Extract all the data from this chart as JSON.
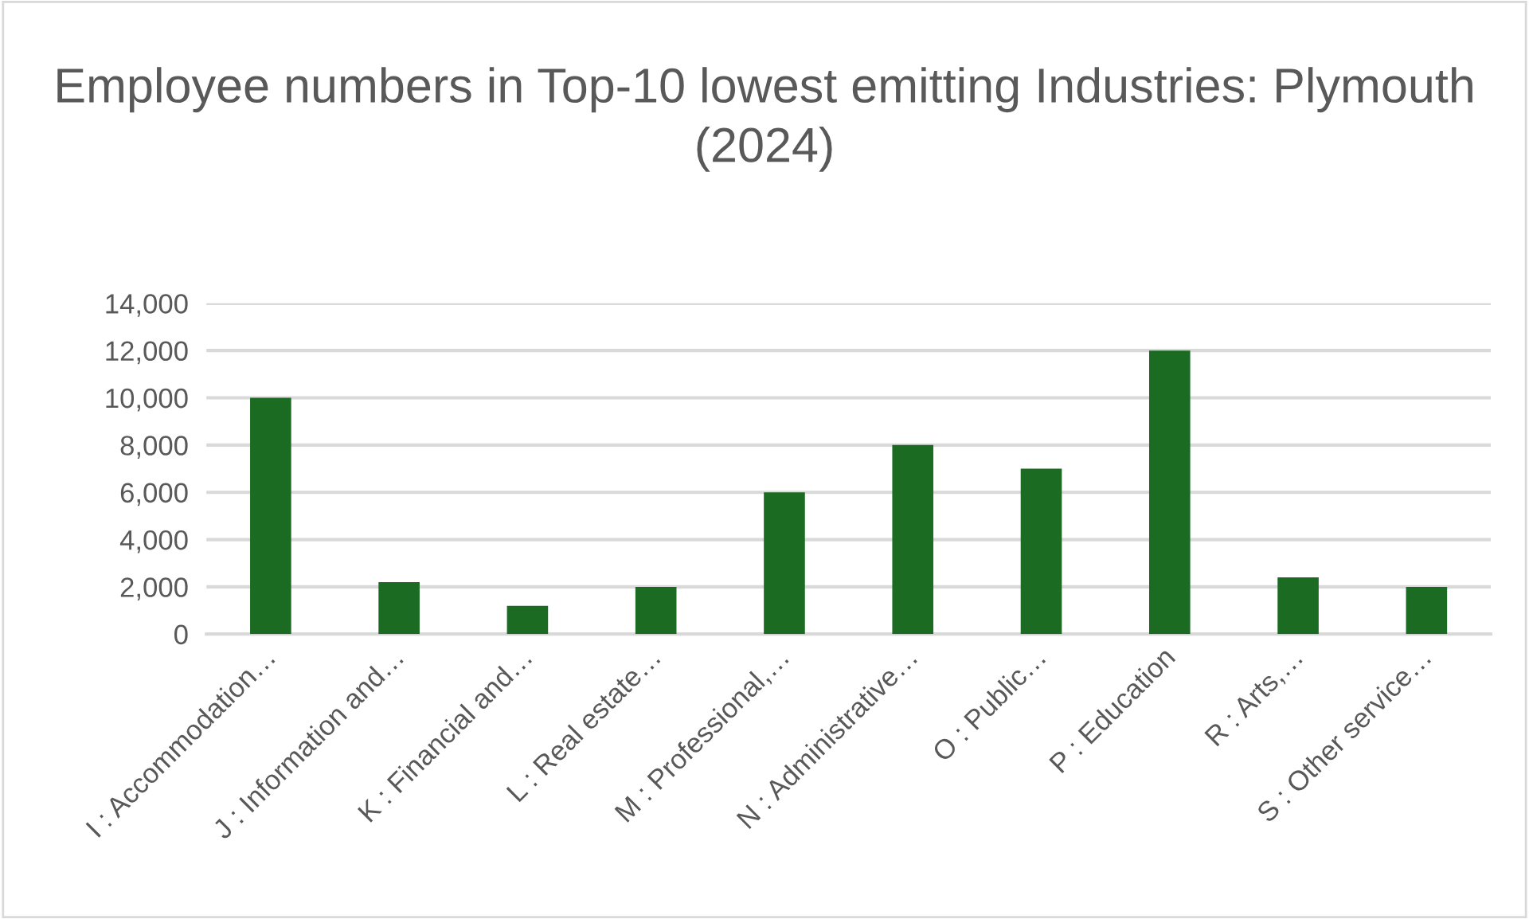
{
  "chart_data": {
    "type": "bar",
    "title": "Employee numbers in Top-10 lowest emitting Industries: Plymouth (2024)",
    "categories": [
      "I : Accommodation…",
      "J : Information and…",
      "K : Financial and…",
      "L : Real estate…",
      "M : Professional,…",
      "N : Administrative…",
      "O : Public…",
      "P : Education",
      "R : Arts,…",
      "S : Other service…"
    ],
    "values": [
      10000,
      2200,
      1200,
      2000,
      6000,
      8000,
      7000,
      12000,
      2400,
      2000
    ],
    "color": "#1b6b23",
    "ylim": [
      0,
      14000
    ],
    "yticks": [
      {
        "value": 0,
        "label": "0"
      },
      {
        "value": 2000,
        "label": "2,000"
      },
      {
        "value": 4000,
        "label": "4,000"
      },
      {
        "value": 6000,
        "label": "6,000"
      },
      {
        "value": 8000,
        "label": "8,000"
      },
      {
        "value": 10000,
        "label": "10,000"
      },
      {
        "value": 12000,
        "label": "12,000"
      },
      {
        "value": 14000,
        "label": "14,000"
      }
    ],
    "grid": "y"
  }
}
